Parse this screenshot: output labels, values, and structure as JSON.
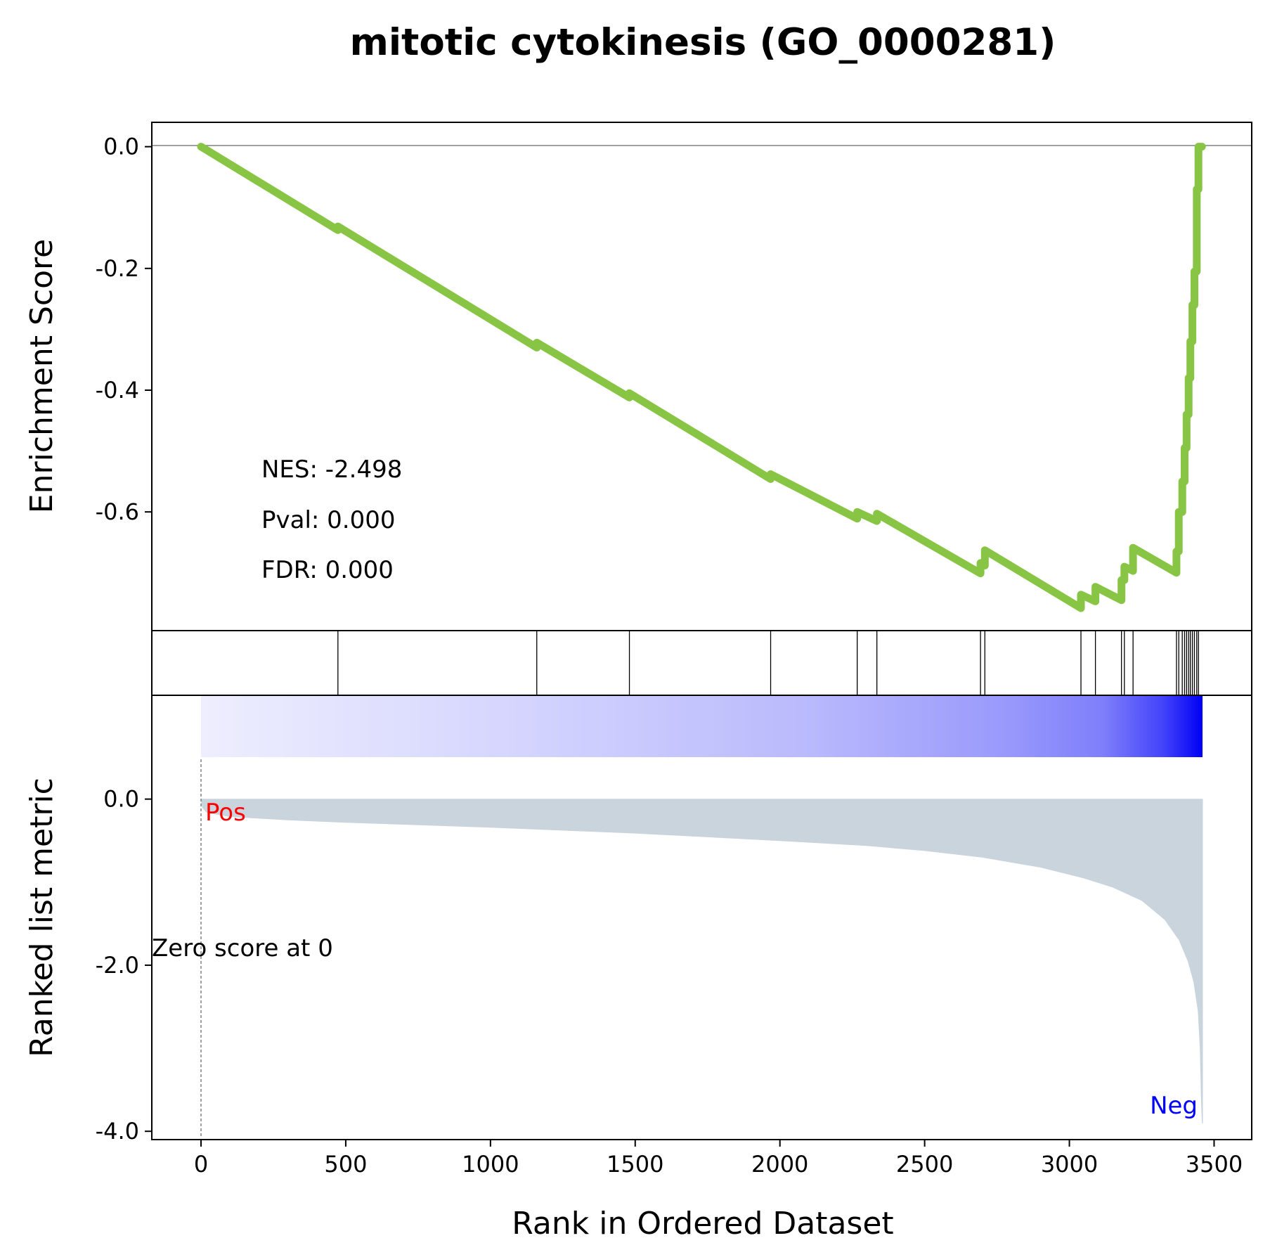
{
  "chart_data": {
    "type": "line",
    "title": "mitotic cytokinesis (GO_0000281)",
    "xlabel": "Rank in Ordered Dataset",
    "xlim": [
      -170,
      3630
    ],
    "xticks": [
      0,
      500,
      1000,
      1500,
      2000,
      2500,
      3000,
      3500
    ],
    "n_genes": 3460,
    "colors": {
      "es_line": "#88c544",
      "ranked_fill": "#c9d4dd",
      "pos": "#ff0000",
      "neg": "#0000ff",
      "zero_line": "#808080"
    },
    "es_panel": {
      "ylabel": "Enrichment Score",
      "ylim": [
        -0.795,
        0.04
      ],
      "yticks": [
        0.0,
        -0.2,
        -0.4,
        -0.6
      ],
      "ytick_labels": [
        "0.0",
        "-0.2",
        "-0.4",
        "-0.6"
      ],
      "stats": {
        "nes": "NES: -2.498",
        "pval": "Pval: 0.000",
        "fdr": "FDR: 0.000"
      },
      "points": [
        [
          0,
          0.0
        ],
        [
          473,
          -0.137
        ],
        [
          473,
          -0.131
        ],
        [
          1160,
          -0.33
        ],
        [
          1160,
          -0.322
        ],
        [
          1480,
          -0.412
        ],
        [
          1480,
          -0.405
        ],
        [
          1968,
          -0.546
        ],
        [
          1968,
          -0.538
        ],
        [
          2267,
          -0.611
        ],
        [
          2267,
          -0.6
        ],
        [
          2335,
          -0.615
        ],
        [
          2335,
          -0.603
        ],
        [
          2693,
          -0.701
        ],
        [
          2693,
          -0.684
        ],
        [
          2708,
          -0.688
        ],
        [
          2708,
          -0.663
        ],
        [
          3040,
          -0.758
        ],
        [
          3040,
          -0.736
        ],
        [
          3090,
          -0.747
        ],
        [
          3090,
          -0.723
        ],
        [
          3180,
          -0.745
        ],
        [
          3180,
          -0.712
        ],
        [
          3190,
          -0.712
        ],
        [
          3190,
          -0.69
        ],
        [
          3220,
          -0.697
        ],
        [
          3220,
          -0.659
        ],
        [
          3370,
          -0.7
        ],
        [
          3370,
          -0.665
        ],
        [
          3378,
          -0.665
        ],
        [
          3378,
          -0.6
        ],
        [
          3390,
          -0.6
        ],
        [
          3390,
          -0.55
        ],
        [
          3398,
          -0.55
        ],
        [
          3398,
          -0.495
        ],
        [
          3405,
          -0.495
        ],
        [
          3405,
          -0.44
        ],
        [
          3412,
          -0.44
        ],
        [
          3412,
          -0.38
        ],
        [
          3418,
          -0.38
        ],
        [
          3418,
          -0.32
        ],
        [
          3425,
          -0.32
        ],
        [
          3425,
          -0.26
        ],
        [
          3432,
          -0.26
        ],
        [
          3432,
          -0.205
        ],
        [
          3440,
          -0.205
        ],
        [
          3440,
          -0.07
        ],
        [
          3446,
          -0.07
        ],
        [
          3446,
          0.0
        ],
        [
          3458,
          0.0
        ]
      ]
    },
    "hits_panel": {
      "ranks": [
        473,
        1160,
        1480,
        1968,
        2267,
        2335,
        2693,
        2708,
        3040,
        3090,
        3180,
        3190,
        3220,
        3370,
        3378,
        3390,
        3398,
        3405,
        3412,
        3418,
        3425,
        3432,
        3440,
        3446
      ]
    },
    "ranked_panel": {
      "ylabel": "Ranked list metric",
      "ylim": [
        -4.1,
        1.25
      ],
      "yticks": [
        0.0,
        -2.0,
        -4.0
      ],
      "ytick_labels": [
        "0.0",
        "-2.0",
        "-4.0"
      ],
      "pos_label": "Pos",
      "neg_label": "Neg",
      "zero_label": "Zero score at 0",
      "zero_rank": 0,
      "profile": [
        [
          0,
          0.0
        ],
        [
          5,
          -0.1
        ],
        [
          20,
          -0.16
        ],
        [
          100,
          -0.21
        ],
        [
          300,
          -0.25
        ],
        [
          500,
          -0.28
        ],
        [
          1000,
          -0.34
        ],
        [
          1500,
          -0.41
        ],
        [
          2000,
          -0.5
        ],
        [
          2300,
          -0.56
        ],
        [
          2500,
          -0.62
        ],
        [
          2700,
          -0.7
        ],
        [
          2900,
          -0.82
        ],
        [
          3050,
          -0.95
        ],
        [
          3150,
          -1.06
        ],
        [
          3250,
          -1.22
        ],
        [
          3330,
          -1.45
        ],
        [
          3380,
          -1.7
        ],
        [
          3410,
          -1.95
        ],
        [
          3430,
          -2.2
        ],
        [
          3445,
          -2.55
        ],
        [
          3452,
          -3.0
        ],
        [
          3456,
          -3.6
        ],
        [
          3459,
          -3.9
        ],
        [
          3460,
          -3.9
        ],
        [
          3460,
          0.0
        ]
      ]
    }
  }
}
